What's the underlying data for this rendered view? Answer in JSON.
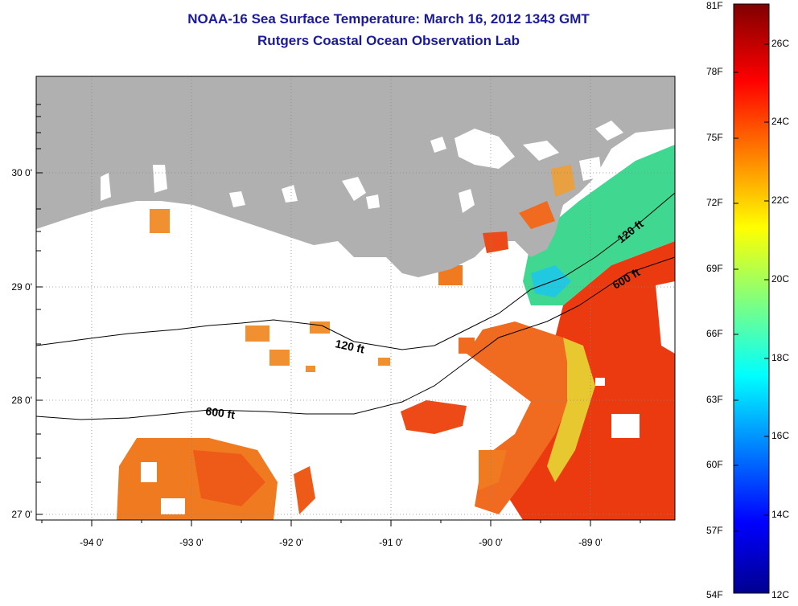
{
  "title": "NOAA-16 Sea Surface Temperature:  March 16, 2012 1343 GMT",
  "subtitle": "Rutgers Coastal Ocean Observation Lab",
  "map": {
    "x_tick_labels": [
      "-94 0'",
      "-93 0'",
      "-92 0'",
      "-91 0'",
      "-90 0'",
      "-89 0'"
    ],
    "y_tick_labels": [
      "30 0'",
      "29 0'",
      "28 0'",
      "27 0'"
    ],
    "contour_labels": {
      "shelf_120": "120 ft",
      "shelf_120_east": "120 ft",
      "slope_600": "600 ft",
      "slope_600_east": "600 ft"
    },
    "colors": {
      "land": "#b0b0b0",
      "nodata": "#ffffff",
      "warm_offshore": "#ec3a10",
      "shelf_orange": "#f08020",
      "nearshore_green": "#40e080",
      "nearshore_cyan": "#20c8e0",
      "grid": "#888888"
    }
  },
  "colorbar": {
    "fahrenheit_labels": [
      "81F",
      "78F",
      "75F",
      "72F",
      "69F",
      "66F",
      "63F",
      "60F",
      "57F",
      "54F"
    ],
    "celsius_labels": [
      "26C",
      "24C",
      "22C",
      "20C",
      "18C",
      "16C",
      "14C",
      "12C"
    ],
    "range_f": [
      54,
      81
    ],
    "range_c": [
      12,
      27
    ]
  }
}
